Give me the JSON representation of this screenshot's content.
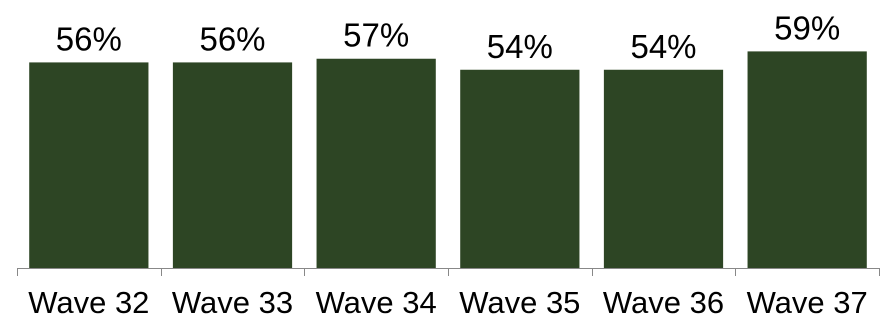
{
  "chart_data": {
    "type": "bar",
    "title": "",
    "xlabel": "",
    "ylabel": "",
    "categories": [
      "Wave 32",
      "Wave 33",
      "Wave 34",
      "Wave 35",
      "Wave 36",
      "Wave 37"
    ],
    "values": [
      56,
      56,
      57,
      54,
      54,
      59
    ],
    "value_labels": [
      "56%",
      "56%",
      "57%",
      "54%",
      "54%",
      "59%"
    ],
    "unit": "%",
    "ylim": [
      0,
      73
    ],
    "grid": false,
    "legend": "none",
    "bar_color": "#2d4524",
    "axis_color": "#888888"
  }
}
